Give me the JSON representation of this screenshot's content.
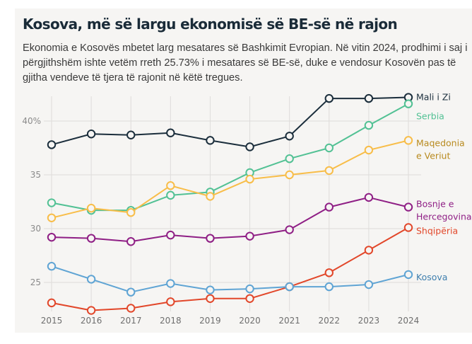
{
  "header": {
    "title": "Kosova, më së largu ekonomisë së BE-së në rajon",
    "subtitle": "Ekonomia e Kosovës mbetet larg mesatares së Bashkimit Evropian. Në vitin 2024, prodhimi i saj i përgjithshëm ishte vetëm rreth 25.73% i mesatares së BE-së, duke e vendosur Kosovën pas të gjitha vendeve të tjera të rajonit në këtë tregues."
  },
  "chart_data": {
    "type": "line",
    "title": "Kosova, më së largu ekonomisë së BE-së në rajon",
    "xlabel": "",
    "ylabel": "",
    "x": [
      2015,
      2016,
      2017,
      2018,
      2019,
      2020,
      2021,
      2022,
      2023,
      2024
    ],
    "x_tick_labels": [
      "2015",
      "2016",
      "2017",
      "2018",
      "2019",
      "2020",
      "2021",
      "2022",
      "2023",
      "2024"
    ],
    "y_ticks": [
      25,
      30,
      35,
      40
    ],
    "y_tick_labels": [
      "25",
      "30",
      "35",
      "40%"
    ],
    "ylim": [
      22.2,
      43.2
    ],
    "grid": true,
    "legend": "direct labels at right end of lines",
    "series": [
      {
        "name": "Mali i Zi",
        "label_lines": [
          "Mali i Zi"
        ],
        "color": "#1b2e3c",
        "values": [
          37.8,
          38.8,
          38.7,
          38.9,
          38.2,
          37.6,
          38.6,
          42.1,
          42.1,
          42.2
        ]
      },
      {
        "name": "Serbia",
        "label_lines": [
          "Serbia"
        ],
        "color": "#52c194",
        "values": [
          32.4,
          31.7,
          31.7,
          33.1,
          33.4,
          35.2,
          36.5,
          37.5,
          39.6,
          41.6
        ]
      },
      {
        "name": "Maqedonia e Veriut",
        "label_lines": [
          "Maqedonia",
          "e Veriut"
        ],
        "color": "#f8bd48",
        "label_color": "#b88a1e",
        "values": [
          31.0,
          31.9,
          31.5,
          34.0,
          33.0,
          34.6,
          35.0,
          35.4,
          37.3,
          38.2
        ]
      },
      {
        "name": "Bosnje e Hercegovina",
        "label_lines": [
          "Bosnje e",
          "Hercegovina"
        ],
        "color": "#8f1f85",
        "values": [
          29.2,
          29.1,
          28.8,
          29.4,
          29.1,
          29.3,
          29.9,
          32.0,
          32.9,
          32.0
        ]
      },
      {
        "name": "Shqipëria",
        "label_lines": [
          "Shqipëria"
        ],
        "color": "#e2472a",
        "values": [
          23.1,
          22.4,
          22.6,
          23.2,
          23.5,
          23.5,
          24.6,
          25.9,
          28.0,
          30.1
        ]
      },
      {
        "name": "Kosova",
        "label_lines": [
          "Kosova"
        ],
        "color": "#5fa4d4",
        "label_color": "#3f7fae",
        "values": [
          26.5,
          25.3,
          24.1,
          24.9,
          24.3,
          24.4,
          24.6,
          24.6,
          24.8,
          25.73
        ]
      }
    ]
  }
}
